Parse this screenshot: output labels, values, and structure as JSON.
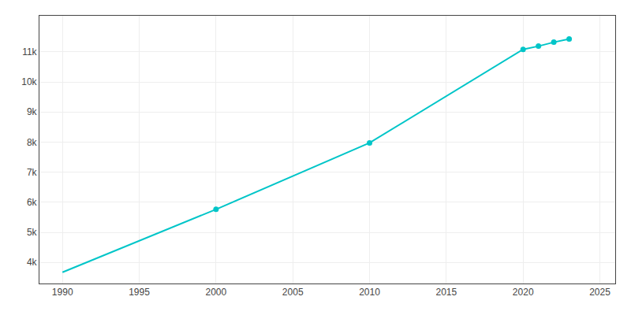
{
  "chart_data": {
    "type": "line",
    "x": [
      1990,
      2000,
      2010,
      2020,
      2021,
      2022,
      2023
    ],
    "series": [
      {
        "type": "line",
        "color": "#00C5C8",
        "values": [
          3674,
          5765,
          7974,
          11081,
          11189,
          11320,
          11430
        ]
      },
      {
        "type": "scatter",
        "color": "#00C5C8",
        "marker": "circle",
        "values": [
          null,
          5765,
          7974,
          11081,
          11189,
          11320,
          11430
        ]
      }
    ],
    "xlim": [
      1988.5,
      2026
    ],
    "xticks": [
      1990,
      1995,
      2000,
      2005,
      2010,
      2015,
      2020,
      2025
    ],
    "ylim": [
      3300,
      12200
    ],
    "yticks": [
      {
        "value": 4000,
        "label": "4k"
      },
      {
        "value": 5000,
        "label": "5k"
      },
      {
        "value": 6000,
        "label": "6k"
      },
      {
        "value": 7000,
        "label": "7k"
      },
      {
        "value": 8000,
        "label": "8k"
      },
      {
        "value": 9000,
        "label": "9k"
      },
      {
        "value": 10000,
        "label": "10k"
      },
      {
        "value": 11000,
        "label": "11k"
      }
    ],
    "grid": true
  }
}
